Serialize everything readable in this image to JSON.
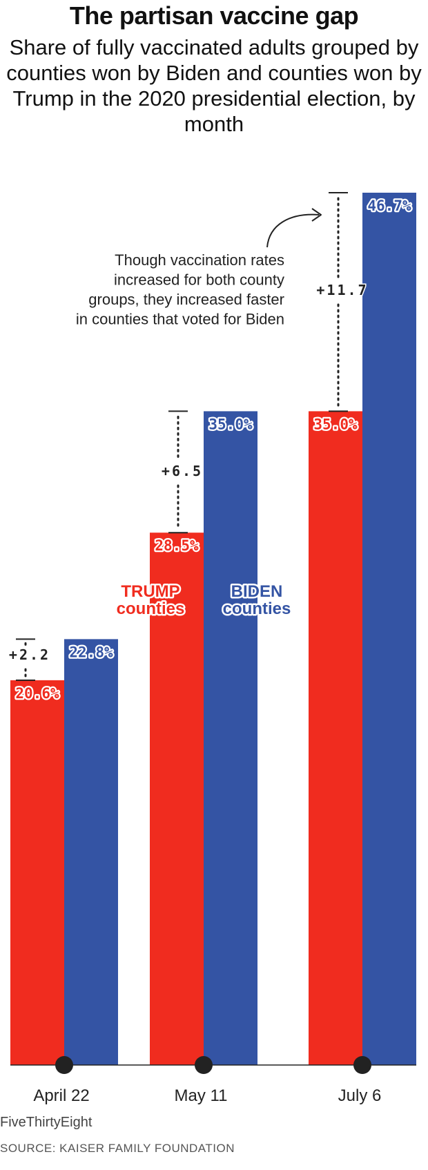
{
  "title": "The partisan vaccine gap",
  "subtitle": "Share of fully vaccinated adults grouped by counties won by Biden and counties won by Trump in the 2020 presidential election, by month",
  "colors": {
    "trump": "#f02c1f",
    "biden": "#3454a4"
  },
  "chart_data": {
    "type": "bar",
    "categories": [
      "April 22",
      "May 11",
      "July 6"
    ],
    "series": [
      {
        "name": "TRUMP counties",
        "values": [
          20.6,
          28.5,
          35.0
        ],
        "labels": [
          "20.6%",
          "28.5%",
          "35.0%"
        ]
      },
      {
        "name": "BIDEN counties",
        "values": [
          22.8,
          35.0,
          46.7
        ],
        "labels": [
          "22.8%",
          "35.0%",
          "46.7%"
        ]
      }
    ],
    "series_labels": [
      {
        "line1": "TRUMP",
        "line2": "counties"
      },
      {
        "line1": "BIDEN",
        "line2": "counties"
      }
    ],
    "gaps": [
      "+2.2",
      "+6.5",
      "+11.7"
    ],
    "annotation": [
      "Though vaccination rates",
      "increased for both county",
      "groups, they increased faster",
      "in counties that voted for Biden"
    ],
    "ylim": [
      0,
      46.7
    ],
    "grid": false,
    "legend": "direct labels on May 11 bars"
  },
  "footer": {
    "brand": "FiveThirtyEight",
    "source": "SOURCE: KAISER FAMILY FOUNDATION"
  }
}
